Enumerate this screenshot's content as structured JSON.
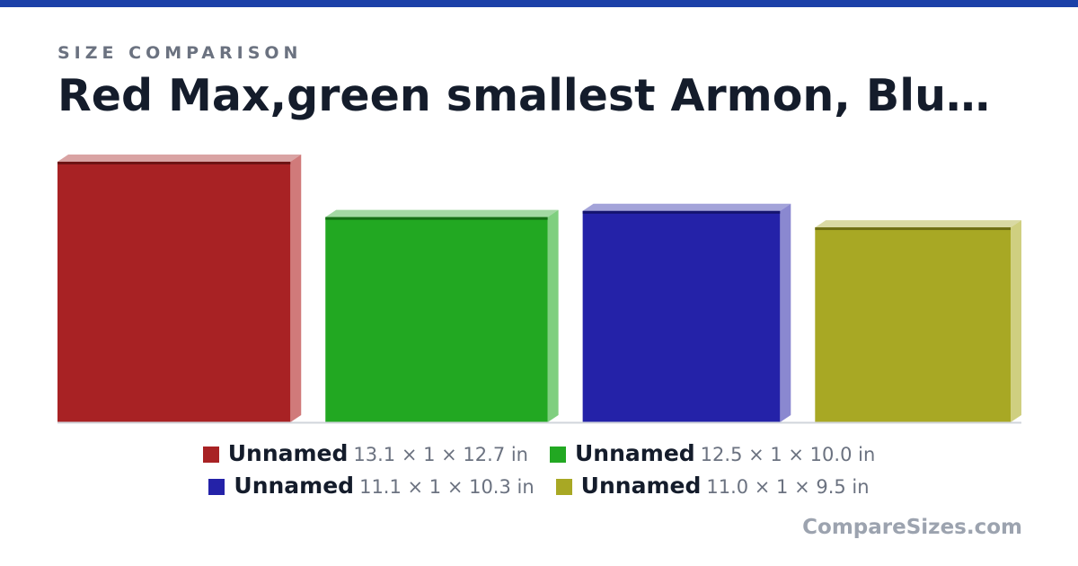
{
  "header": {
    "eyebrow": "SIZE COMPARISON",
    "title": "Red Max,green smallest Armon, Blu…"
  },
  "items": [
    {
      "name": "Unnamed",
      "label": "13.1 × 1 × 12.7 in",
      "width": 13.1,
      "depth": 1,
      "height": 12.7,
      "color": "#a82224",
      "side": "#d07a7a",
      "top": "#d9a3a3",
      "edge": "#6e1414"
    },
    {
      "name": "Unnamed",
      "label": "12.5 × 1 × 10.0 in",
      "width": 12.5,
      "depth": 1,
      "height": 10.0,
      "color": "#22a822",
      "side": "#7fcf7f",
      "top": "#a3d9a3",
      "edge": "#146e14"
    },
    {
      "name": "Unnamed",
      "label": "11.1 × 1 × 10.3 in",
      "width": 11.1,
      "depth": 1,
      "height": 10.3,
      "color": "#2422a8",
      "side": "#8a88d0",
      "top": "#a3a3d9",
      "edge": "#14146e"
    },
    {
      "name": "Unnamed",
      "label": "11.0 × 1 × 9.5 in",
      "width": 11.0,
      "depth": 1,
      "height": 9.5,
      "color": "#a8a824",
      "side": "#cfcf80",
      "top": "#d9d9a3",
      "edge": "#6e6e14"
    }
  ],
  "brand": "CompareSizes.com"
}
